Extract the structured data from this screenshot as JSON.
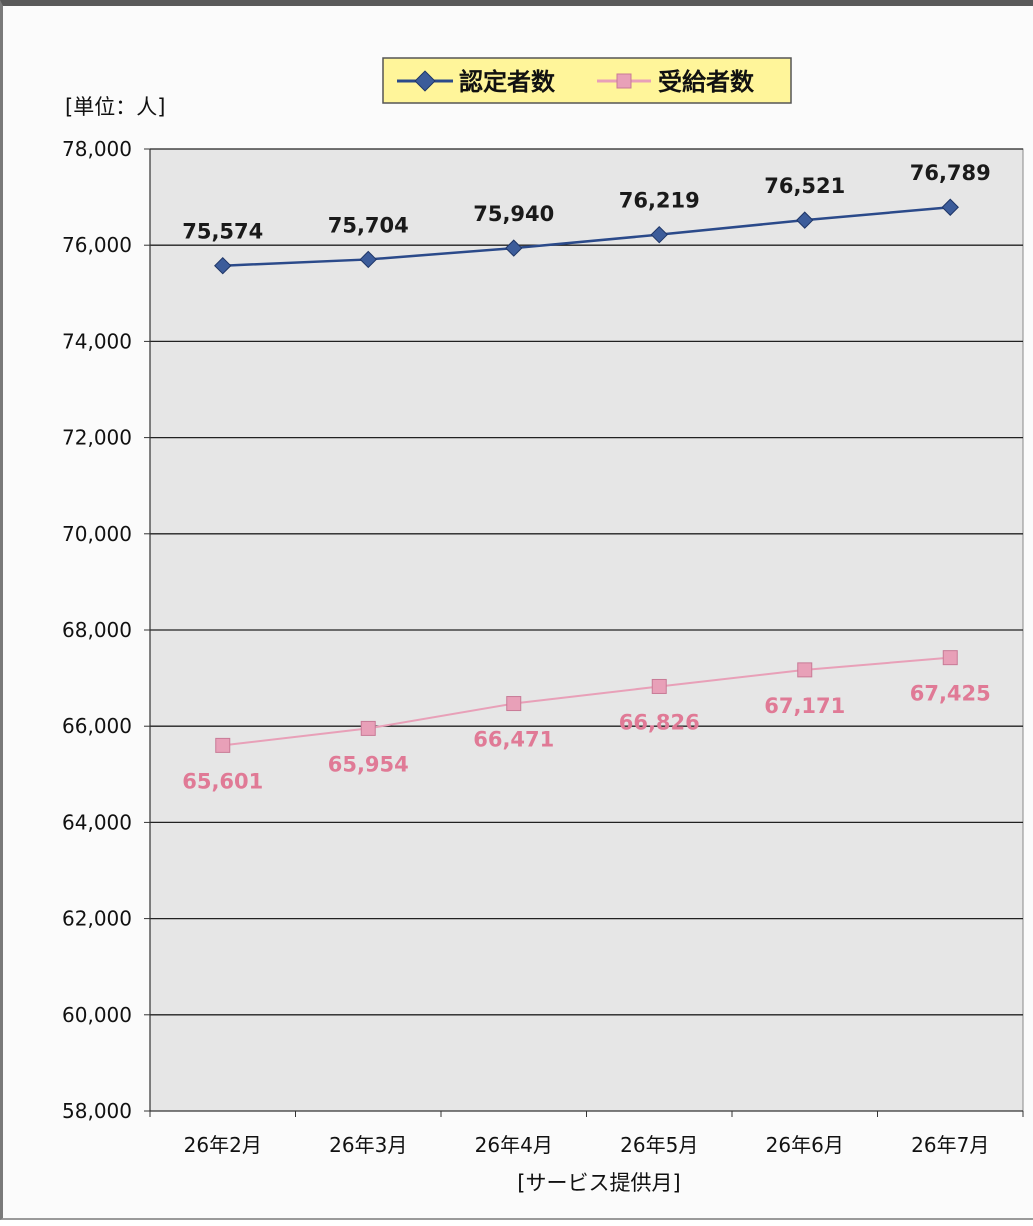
{
  "chart_data": {
    "type": "line",
    "title": "",
    "ylabel": "[単位：人]",
    "xlabel": "[サービス提供月]",
    "categories": [
      "26年2月",
      "26年3月",
      "26年4月",
      "26年5月",
      "26年6月",
      "26年7月"
    ],
    "ylim": [
      58000,
      78000
    ],
    "yticks": [
      58000,
      60000,
      62000,
      64000,
      66000,
      68000,
      70000,
      72000,
      74000,
      76000,
      78000
    ],
    "ytick_labels": [
      "58,000",
      "60,000",
      "62,000",
      "64,000",
      "66,000",
      "68,000",
      "70,000",
      "72,000",
      "74,000",
      "76,000",
      "78,000"
    ],
    "grid": true,
    "legend_position": "top-center",
    "series": [
      {
        "name": "認定者数",
        "color": "#2b4a8a",
        "marker": "diamond",
        "values": [
          75574,
          75704,
          75940,
          76219,
          76521,
          76789
        ],
        "labels": [
          "75,574",
          "75,704",
          "75,940",
          "76,219",
          "76,521",
          "76,789"
        ]
      },
      {
        "name": "受給者数",
        "color": "#e8a0b8",
        "marker": "square",
        "values": [
          65601,
          65954,
          66471,
          66826,
          67171,
          67425
        ],
        "labels": [
          "65,601",
          "65,954",
          "66,471",
          "66,826",
          "67,171",
          "67,425"
        ]
      }
    ]
  }
}
